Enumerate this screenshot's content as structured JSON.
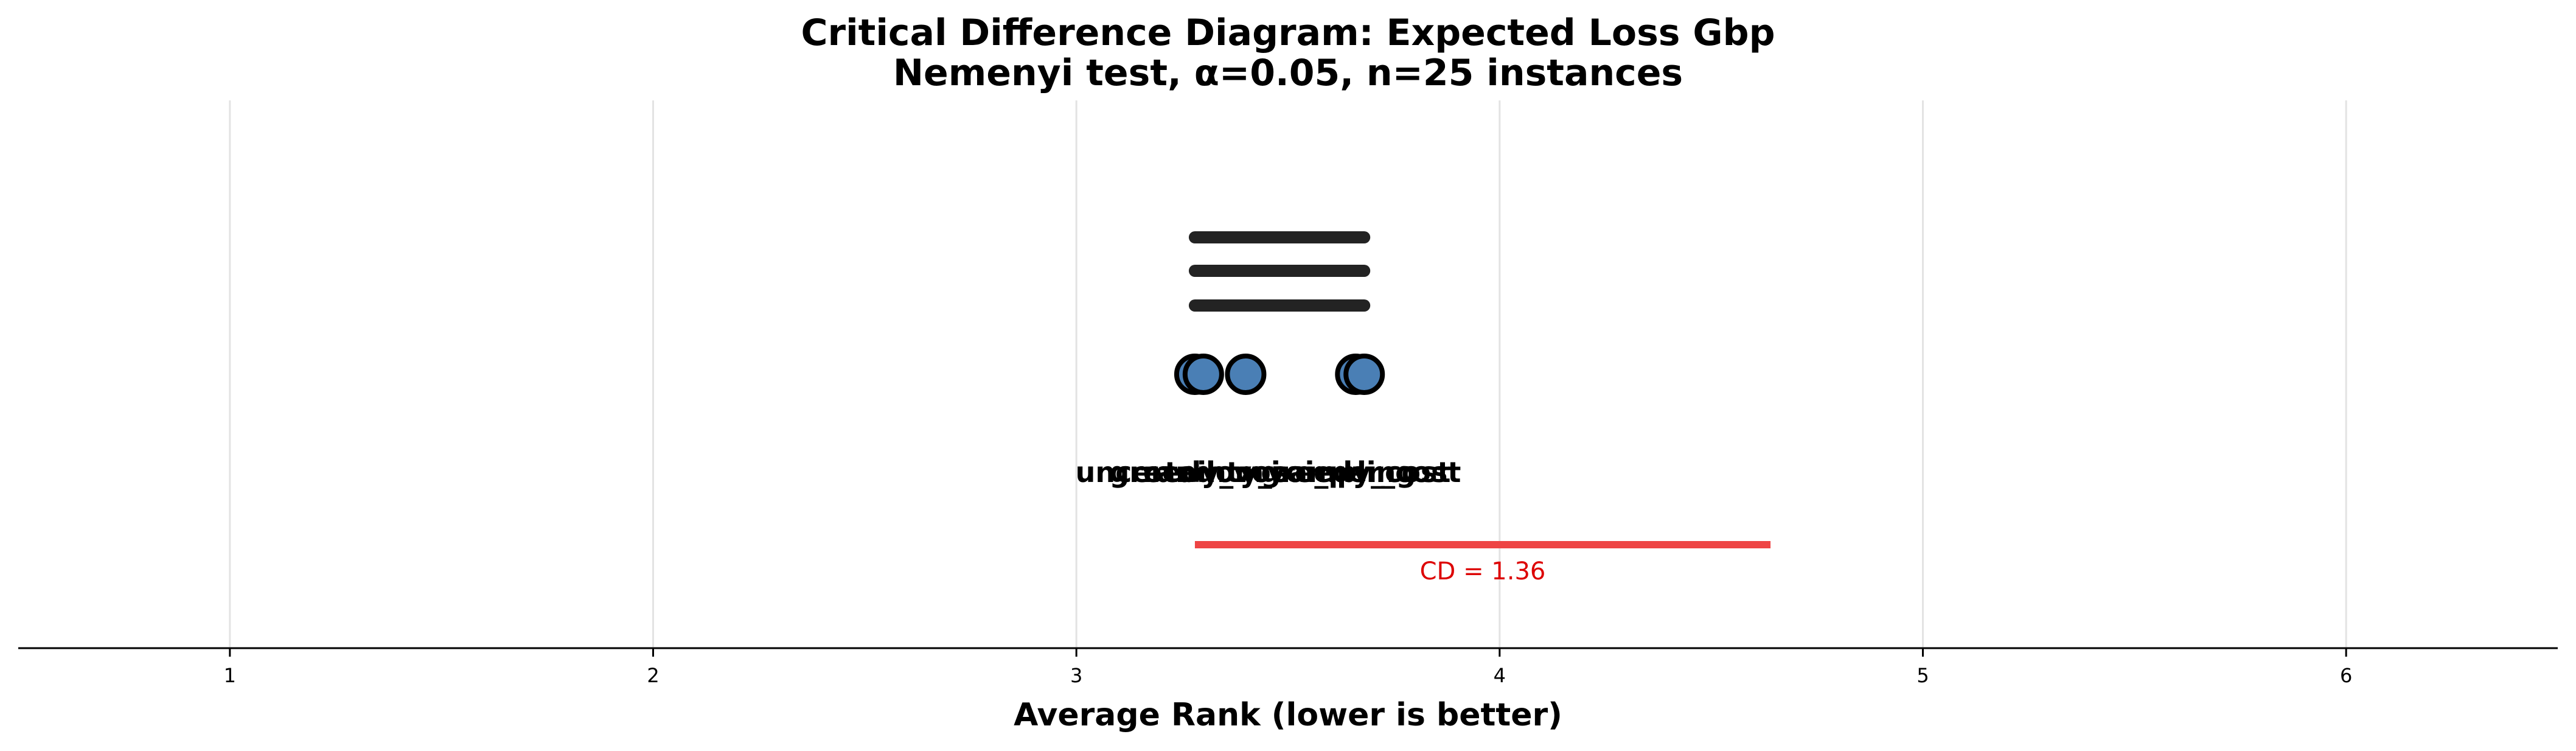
{
  "chart_data": {
    "type": "scatter",
    "title": "Critical Difference Diagram: Expected Loss Gbp",
    "subtitle": "Nemenyi test, α=0.05, n=25 instances",
    "xlabel": "Average Rank (lower is better)",
    "xlim": [
      0.5,
      6.5
    ],
    "xticks": [
      "1",
      "2",
      "3",
      "4",
      "5",
      "6"
    ],
    "grid": true,
    "point_color": "#4a7fb5",
    "clique_color": "#111111",
    "cd_color": "#ee4444",
    "methods": [
      {
        "name": "greedy_voi",
        "rank": 3.28
      },
      {
        "name": "random",
        "rank": 3.3
      },
      {
        "name": "uncertainty_sampling",
        "rank": 3.4
      },
      {
        "name": "greedy_cost",
        "rank": 3.66
      },
      {
        "name": "voi_per_cost",
        "rank": 3.68
      }
    ],
    "cliques": [
      {
        "from": 3.28,
        "to": 3.68
      },
      {
        "from": 3.28,
        "to": 3.68
      },
      {
        "from": 3.28,
        "to": 3.68
      }
    ],
    "critical_difference": {
      "value": 1.36,
      "label": "CD = 1.36",
      "start": 3.28
    }
  }
}
